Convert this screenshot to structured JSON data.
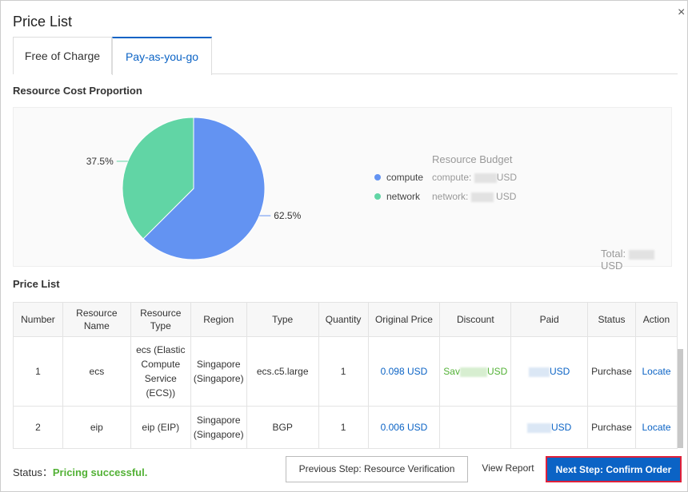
{
  "dialog": {
    "title": "Price List",
    "close": "×"
  },
  "tabs": [
    {
      "label": "Free of Charge"
    },
    {
      "label": "Pay-as-you-go"
    }
  ],
  "cost_section": {
    "title": "Resource Cost Proportion"
  },
  "chart_data": {
    "type": "pie",
    "title": "Resource Cost Proportion",
    "slices": [
      {
        "label": "compute",
        "value": 62.5,
        "display": "62.5%",
        "color": "#6393f2"
      },
      {
        "label": "network",
        "value": 37.5,
        "display": "37.5%",
        "color": "#61d5a5"
      }
    ],
    "legend_placement": "right"
  },
  "budget": {
    "title": "Resource Budget",
    "compute_label": "compute:",
    "network_label": "network:",
    "unit": "USD",
    "total_label": "Total:"
  },
  "price_section": {
    "title": "Price List"
  },
  "table": {
    "headers": [
      "Number",
      "Resource Name",
      "Resource Type",
      "Region",
      "Type",
      "Quantity",
      "Original Price",
      "Discount",
      "Paid",
      "Status",
      "Action"
    ],
    "rows": [
      {
        "number": "1",
        "name": "ecs",
        "rtype": "ecs (Elastic Compute Service (ECS))",
        "region": "Singapore (Singapore)",
        "type": "ecs.c5.large",
        "qty": "1",
        "orig": "0.098 USD",
        "discount_prefix": "Sav",
        "discount_unit": "USD",
        "paid_unit": "USD",
        "status": "Purchase",
        "action": "Locate"
      },
      {
        "number": "2",
        "name": "eip",
        "rtype": "eip (EIP)",
        "region": "Singapore (Singapore)",
        "type": "BGP",
        "qty": "1",
        "orig": "0.006 USD",
        "discount_prefix": "",
        "discount_unit": "",
        "paid_unit": "USD",
        "status": "Purchase",
        "action": "Locate"
      }
    ]
  },
  "footer": {
    "status_label": "Status：",
    "status_value": "Pricing successful.",
    "prev": "Previous Step: Resource Verification",
    "report": "View Report",
    "next": "Next Step: Confirm Order"
  }
}
